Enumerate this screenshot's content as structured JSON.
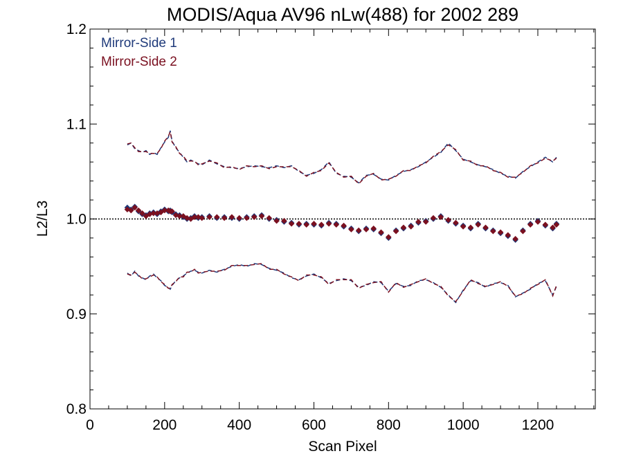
{
  "chart_data": {
    "type": "line",
    "title": "MODIS/Aqua AV96 nLw(488) for 2002 289",
    "xlabel": "Scan Pixel",
    "ylabel": "L2/L3",
    "xlim": [
      0,
      1354
    ],
    "ylim": [
      0.8,
      1.2
    ],
    "x_ticks": [
      0,
      200,
      400,
      600,
      800,
      1000,
      1200
    ],
    "x_tick_labels": [
      "0",
      "200",
      "400",
      "600",
      "800",
      "1000",
      "1200"
    ],
    "y_ticks": [
      0.8,
      0.9,
      1.0,
      1.1,
      1.2
    ],
    "y_tick_labels": [
      "0.8",
      "0.9",
      "1.0",
      "1.1",
      "1.2"
    ],
    "reference_line": 1.0,
    "grid": false,
    "legend_position": "top-left",
    "colors": {
      "ms1": "#1f3a7a",
      "ms2": "#7a1020"
    },
    "x": [
      100,
      110,
      120,
      130,
      140,
      150,
      160,
      170,
      180,
      190,
      200,
      210,
      215,
      220,
      230,
      240,
      250,
      260,
      270,
      280,
      290,
      300,
      320,
      340,
      360,
      380,
      400,
      420,
      440,
      460,
      480,
      500,
      520,
      540,
      560,
      580,
      600,
      620,
      640,
      660,
      680,
      700,
      720,
      740,
      760,
      780,
      800,
      820,
      840,
      860,
      880,
      900,
      920,
      940,
      960,
      980,
      1000,
      1020,
      1040,
      1060,
      1080,
      1100,
      1120,
      1140,
      1160,
      1180,
      1200,
      1220,
      1240,
      1250
    ],
    "series": [
      {
        "name": "Mirror-Side 1",
        "mean": [
          1.012,
          1.01,
          1.013,
          1.008,
          1.005,
          1.004,
          1.006,
          1.007,
          1.005,
          1.008,
          1.01,
          1.008,
          1.009,
          1.007,
          1.005,
          1.004,
          1.002,
          1.0,
          1.001,
          1.003,
          1.001,
          1.002,
          1.003,
          1.001,
          1.002,
          1.001,
          1.0,
          1.002,
          1.003,
          1.004,
          1.0,
          0.999,
          0.997,
          0.996,
          0.994,
          0.995,
          0.994,
          0.993,
          0.996,
          0.995,
          0.992,
          0.99,
          0.987,
          0.99,
          0.989,
          0.985,
          0.98,
          0.988,
          0.99,
          0.993,
          0.996,
          0.998,
          1.0,
          1.003,
          0.998,
          0.995,
          0.993,
          0.99,
          0.995,
          0.99,
          0.988,
          0.985,
          0.982,
          0.978,
          0.988,
          0.995,
          0.998,
          0.993,
          0.99,
          0.995
        ],
        "upper": [
          1.078,
          1.08,
          1.074,
          1.072,
          1.07,
          1.072,
          1.068,
          1.07,
          1.068,
          1.075,
          1.081,
          1.086,
          1.093,
          1.082,
          1.075,
          1.07,
          1.065,
          1.06,
          1.062,
          1.06,
          1.058,
          1.057,
          1.062,
          1.058,
          1.055,
          1.054,
          1.053,
          1.055,
          1.056,
          1.055,
          1.054,
          1.056,
          1.054,
          1.056,
          1.05,
          1.046,
          1.048,
          1.052,
          1.06,
          1.048,
          1.045,
          1.044,
          1.038,
          1.046,
          1.047,
          1.042,
          1.041,
          1.046,
          1.05,
          1.052,
          1.055,
          1.06,
          1.065,
          1.07,
          1.08,
          1.072,
          1.063,
          1.06,
          1.057,
          1.055,
          1.052,
          1.048,
          1.045,
          1.043,
          1.05,
          1.055,
          1.06,
          1.065,
          1.06,
          1.065
        ],
        "lower": [
          0.943,
          0.94,
          0.945,
          0.94,
          0.938,
          0.936,
          0.94,
          0.942,
          0.938,
          0.935,
          0.93,
          0.928,
          0.926,
          0.93,
          0.935,
          0.938,
          0.94,
          0.943,
          0.945,
          0.946,
          0.944,
          0.943,
          0.946,
          0.944,
          0.947,
          0.95,
          0.952,
          0.95,
          0.953,
          0.952,
          0.948,
          0.946,
          0.943,
          0.938,
          0.936,
          0.94,
          0.942,
          0.938,
          0.932,
          0.935,
          0.937,
          0.935,
          0.928,
          0.93,
          0.934,
          0.933,
          0.924,
          0.932,
          0.929,
          0.93,
          0.935,
          0.936,
          0.933,
          0.928,
          0.92,
          0.912,
          0.925,
          0.935,
          0.933,
          0.928,
          0.932,
          0.933,
          0.93,
          0.918,
          0.922,
          0.926,
          0.932,
          0.935,
          0.92,
          0.929
        ]
      },
      {
        "name": "Mirror-Side 2",
        "mean": [
          1.01,
          1.009,
          1.012,
          1.009,
          1.006,
          1.003,
          1.005,
          1.006,
          1.006,
          1.007,
          1.009,
          1.009,
          1.008,
          1.008,
          1.004,
          1.003,
          1.003,
          1.001,
          1.0,
          1.002,
          1.002,
          1.001,
          1.002,
          1.002,
          1.001,
          1.002,
          1.001,
          1.001,
          1.002,
          1.003,
          1.001,
          0.998,
          0.998,
          0.995,
          0.995,
          0.994,
          0.995,
          0.994,
          0.995,
          0.994,
          0.993,
          0.989,
          0.988,
          0.989,
          0.99,
          0.986,
          0.981,
          0.987,
          0.991,
          0.992,
          0.997,
          0.997,
          1.001,
          1.002,
          0.999,
          0.996,
          0.992,
          0.991,
          0.994,
          0.991,
          0.987,
          0.986,
          0.983,
          0.979,
          0.987,
          0.994,
          0.997,
          0.994,
          0.991,
          0.994
        ],
        "upper": [
          1.079,
          1.08,
          1.075,
          1.071,
          1.071,
          1.071,
          1.069,
          1.069,
          1.069,
          1.074,
          1.082,
          1.087,
          1.092,
          1.081,
          1.076,
          1.069,
          1.066,
          1.061,
          1.061,
          1.061,
          1.057,
          1.058,
          1.061,
          1.059,
          1.054,
          1.055,
          1.052,
          1.056,
          1.055,
          1.056,
          1.053,
          1.055,
          1.055,
          1.055,
          1.051,
          1.045,
          1.049,
          1.051,
          1.059,
          1.049,
          1.044,
          1.045,
          1.037,
          1.045,
          1.048,
          1.041,
          1.042,
          1.045,
          1.051,
          1.051,
          1.056,
          1.059,
          1.066,
          1.071,
          1.078,
          1.073,
          1.062,
          1.061,
          1.056,
          1.056,
          1.051,
          1.049,
          1.044,
          1.044,
          1.049,
          1.056,
          1.059,
          1.064,
          1.061,
          1.064
        ],
        "lower": [
          0.942,
          0.941,
          0.944,
          0.941,
          0.937,
          0.937,
          0.939,
          0.941,
          0.939,
          0.934,
          0.931,
          0.927,
          0.927,
          0.931,
          0.934,
          0.939,
          0.939,
          0.944,
          0.944,
          0.947,
          0.943,
          0.944,
          0.945,
          0.945,
          0.946,
          0.951,
          0.951,
          0.951,
          0.952,
          0.953,
          0.947,
          0.947,
          0.942,
          0.939,
          0.935,
          0.941,
          0.941,
          0.939,
          0.931,
          0.936,
          0.936,
          0.936,
          0.927,
          0.931,
          0.933,
          0.934,
          0.923,
          0.933,
          0.928,
          0.931,
          0.934,
          0.937,
          0.932,
          0.929,
          0.919,
          0.913,
          0.924,
          0.936,
          0.932,
          0.929,
          0.931,
          0.934,
          0.929,
          0.919,
          0.921,
          0.927,
          0.931,
          0.936,
          0.919,
          0.93
        ]
      }
    ]
  }
}
